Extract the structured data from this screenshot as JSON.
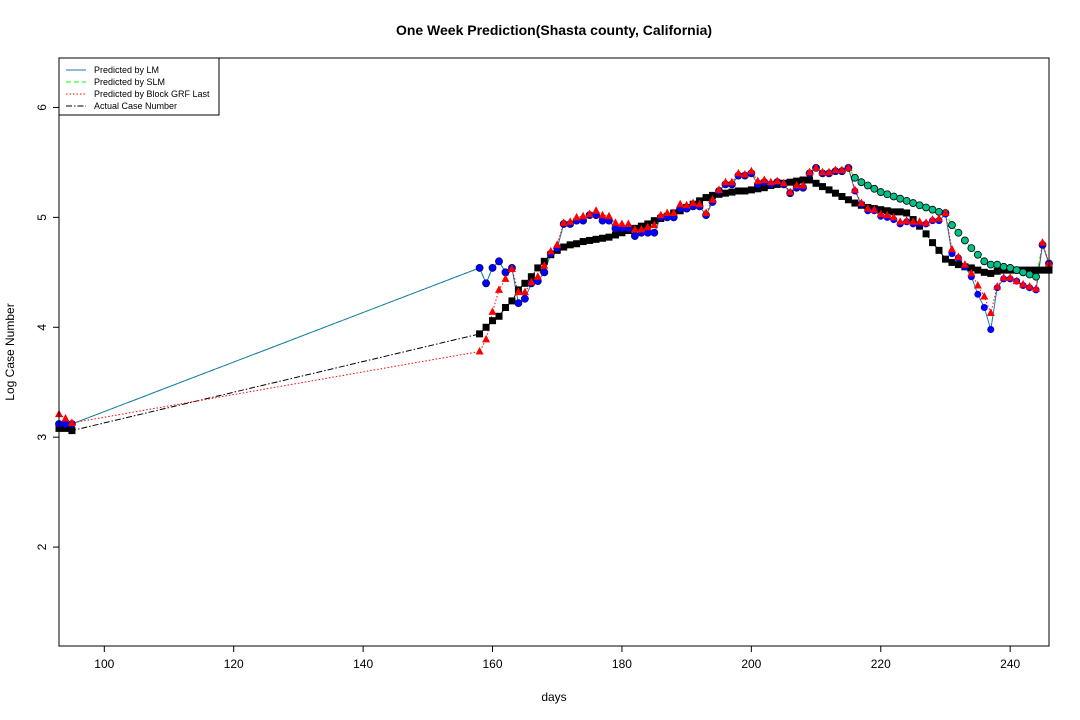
{
  "chart_data": {
    "type": "line",
    "title": "One Week Prediction(Shasta county, California)",
    "xlabel": "days",
    "ylabel": "Log Case Number",
    "xlim": [
      93,
      246
    ],
    "ylim": [
      1.1,
      6.45
    ],
    "x_ticks": [
      100,
      120,
      140,
      160,
      180,
      200,
      220,
      240
    ],
    "y_ticks": [
      2,
      3,
      4,
      5,
      6
    ],
    "grid": false,
    "legend_position": "top-left",
    "series": [
      {
        "name": "Predicted by LM",
        "line_color": "#1f77b4",
        "line_style": "solid",
        "marker": "circle",
        "marker_color": "#0000ff",
        "x": [
          93,
          94,
          95,
          158,
          159,
          160,
          161,
          162,
          163,
          164,
          165,
          166,
          167,
          168,
          169,
          170,
          171,
          172,
          173,
          174,
          175,
          176,
          177,
          178,
          179,
          180,
          181,
          182,
          183,
          184,
          185,
          186,
          187,
          188,
          189,
          190,
          191,
          192,
          193,
          194,
          195,
          196,
          197,
          198,
          199,
          200,
          201,
          202,
          203,
          204,
          205,
          206,
          207,
          208,
          209,
          210,
          211,
          212,
          213,
          214,
          215,
          216,
          217,
          218,
          219,
          220,
          221,
          222,
          223,
          224,
          225,
          226,
          227,
          228,
          229,
          230,
          231,
          232,
          233,
          234,
          235,
          236,
          237,
          238,
          239,
          240,
          241,
          242,
          243,
          244,
          245,
          246
        ],
        "y": [
          3.12,
          3.12,
          3.12,
          4.54,
          4.4,
          4.54,
          4.6,
          4.5,
          4.54,
          4.22,
          4.26,
          4.4,
          4.42,
          4.5,
          4.67,
          4.72,
          4.94,
          4.94,
          4.97,
          4.97,
          5.02,
          5.02,
          4.97,
          4.97,
          4.9,
          4.9,
          4.9,
          4.83,
          4.86,
          4.86,
          4.86,
          5.0,
          5.0,
          5.0,
          5.08,
          5.08,
          5.1,
          5.1,
          5.02,
          5.14,
          5.24,
          5.3,
          5.3,
          5.38,
          5.38,
          5.4,
          5.3,
          5.32,
          5.3,
          5.32,
          5.3,
          5.22,
          5.27,
          5.27,
          5.4,
          5.45,
          5.4,
          5.4,
          5.42,
          5.42,
          5.45,
          5.24,
          5.12,
          5.06,
          5.06,
          5.01,
          5.0,
          4.98,
          4.94,
          4.96,
          4.94,
          4.94,
          4.94,
          4.97,
          4.97,
          5.03,
          4.67,
          4.63,
          4.55,
          4.46,
          4.3,
          4.18,
          3.98,
          4.36,
          4.44,
          4.44,
          4.42,
          4.38,
          4.36,
          4.34,
          4.75,
          4.58
        ]
      },
      {
        "name": "Predicted by SLM",
        "line_color": "#00ff00",
        "line_style": "dashed",
        "marker": "circle",
        "marker_color": "#00c08a",
        "x": [
          93,
          94,
          95,
          158,
          159,
          160,
          161,
          162,
          163,
          164,
          165,
          166,
          167,
          168,
          169,
          170,
          171,
          172,
          173,
          174,
          175,
          176,
          177,
          178,
          179,
          180,
          181,
          182,
          183,
          184,
          185,
          186,
          187,
          188,
          189,
          190,
          191,
          192,
          193,
          194,
          195,
          196,
          197,
          198,
          199,
          200,
          201,
          202,
          203,
          204,
          205,
          206,
          207,
          208,
          209,
          210,
          211,
          212,
          213,
          214,
          215,
          216,
          217,
          218,
          219,
          220,
          221,
          222,
          223,
          224,
          225,
          226,
          227,
          228,
          229,
          230,
          231,
          232,
          233,
          234,
          235,
          236,
          237,
          238,
          239,
          240,
          241,
          242,
          243,
          244,
          245,
          246
        ],
        "y": [
          3.12,
          3.12,
          3.12,
          4.54,
          4.4,
          4.54,
          4.6,
          4.5,
          4.54,
          4.22,
          4.26,
          4.4,
          4.42,
          4.5,
          4.67,
          4.72,
          4.94,
          4.94,
          4.97,
          4.97,
          5.02,
          5.02,
          4.97,
          4.97,
          4.9,
          4.9,
          4.9,
          4.83,
          4.86,
          4.86,
          4.86,
          5.0,
          5.0,
          5.0,
          5.08,
          5.08,
          5.1,
          5.1,
          5.02,
          5.14,
          5.24,
          5.3,
          5.3,
          5.38,
          5.38,
          5.4,
          5.3,
          5.32,
          5.3,
          5.32,
          5.3,
          5.22,
          5.27,
          5.27,
          5.4,
          5.45,
          5.4,
          5.4,
          5.42,
          5.42,
          5.45,
          5.36,
          5.32,
          5.29,
          5.26,
          5.23,
          5.21,
          5.19,
          5.17,
          5.15,
          5.13,
          5.11,
          5.09,
          5.07,
          5.05,
          5.04,
          4.93,
          4.86,
          4.79,
          4.72,
          4.66,
          4.6,
          4.57,
          4.57,
          4.55,
          4.54,
          4.52,
          4.5,
          4.48,
          4.46,
          4.75,
          4.58
        ]
      },
      {
        "name": "Predicted by Block GRF Last",
        "line_color": "#ff0000",
        "line_style": "dotted",
        "marker": "triangle",
        "marker_color": "#ff0000",
        "x": [
          93,
          94,
          95,
          158,
          159,
          160,
          161,
          162,
          163,
          164,
          165,
          166,
          167,
          168,
          169,
          170,
          171,
          172,
          173,
          174,
          175,
          176,
          177,
          178,
          179,
          180,
          181,
          182,
          183,
          184,
          185,
          186,
          187,
          188,
          189,
          190,
          191,
          192,
          193,
          194,
          195,
          196,
          197,
          198,
          199,
          200,
          201,
          202,
          203,
          204,
          205,
          206,
          207,
          208,
          209,
          210,
          211,
          212,
          213,
          214,
          215,
          216,
          217,
          218,
          219,
          220,
          221,
          222,
          223,
          224,
          225,
          226,
          227,
          228,
          229,
          230,
          231,
          232,
          233,
          234,
          235,
          236,
          237,
          238,
          239,
          240,
          241,
          242,
          243,
          244,
          245,
          246
        ],
        "y": [
          3.21,
          3.17,
          3.13,
          3.78,
          3.89,
          4.14,
          4.34,
          4.44,
          4.53,
          4.32,
          4.32,
          4.41,
          4.46,
          4.56,
          4.69,
          4.75,
          4.95,
          4.96,
          5.0,
          5.01,
          5.03,
          5.06,
          5.02,
          5.01,
          4.95,
          4.94,
          4.94,
          4.89,
          4.89,
          4.91,
          4.93,
          5.02,
          5.04,
          5.04,
          5.12,
          5.11,
          5.13,
          5.12,
          5.04,
          5.16,
          5.25,
          5.32,
          5.32,
          5.4,
          5.39,
          5.42,
          5.33,
          5.34,
          5.32,
          5.33,
          5.31,
          5.23,
          5.29,
          5.29,
          5.41,
          5.45,
          5.41,
          5.41,
          5.43,
          5.43,
          5.45,
          5.25,
          5.13,
          5.08,
          5.07,
          5.03,
          5.02,
          5.0,
          4.96,
          4.97,
          4.96,
          4.96,
          4.95,
          4.98,
          4.99,
          5.04,
          4.71,
          4.64,
          4.57,
          4.49,
          4.38,
          4.28,
          4.13,
          4.37,
          4.45,
          4.45,
          4.42,
          4.39,
          4.37,
          4.35,
          4.77,
          4.58
        ]
      },
      {
        "name": "Actual Case Number",
        "line_color": "#000000",
        "line_style": "dotdash",
        "marker": "square",
        "marker_color": "#000000",
        "x": [
          93,
          94,
          95,
          158,
          159,
          160,
          161,
          162,
          163,
          164,
          165,
          166,
          167,
          168,
          169,
          170,
          171,
          172,
          173,
          174,
          175,
          176,
          177,
          178,
          179,
          180,
          181,
          182,
          183,
          184,
          185,
          186,
          187,
          188,
          189,
          190,
          191,
          192,
          193,
          194,
          195,
          196,
          197,
          198,
          199,
          200,
          201,
          202,
          203,
          204,
          205,
          206,
          207,
          208,
          209,
          210,
          211,
          212,
          213,
          214,
          215,
          216,
          217,
          218,
          219,
          220,
          221,
          222,
          223,
          224,
          225,
          226,
          227,
          228,
          229,
          230,
          231,
          232,
          233,
          234,
          235,
          236,
          237,
          238,
          239,
          240,
          241,
          242,
          243,
          244,
          245,
          246
        ],
        "y": [
          3.08,
          3.08,
          3.06,
          3.94,
          4.0,
          4.06,
          4.1,
          4.18,
          4.24,
          4.34,
          4.4,
          4.46,
          4.54,
          4.6,
          4.66,
          4.7,
          4.73,
          4.75,
          4.76,
          4.78,
          4.79,
          4.8,
          4.81,
          4.82,
          4.84,
          4.86,
          4.88,
          4.9,
          4.92,
          4.94,
          4.97,
          4.99,
          5.01,
          5.04,
          5.06,
          5.09,
          5.12,
          5.15,
          5.18,
          5.2,
          5.21,
          5.22,
          5.23,
          5.24,
          5.24,
          5.25,
          5.26,
          5.27,
          5.29,
          5.3,
          5.31,
          5.32,
          5.33,
          5.34,
          5.34,
          5.31,
          5.28,
          5.25,
          5.22,
          5.19,
          5.16,
          5.13,
          5.11,
          5.09,
          5.08,
          5.07,
          5.06,
          5.05,
          5.05,
          5.04,
          4.98,
          4.92,
          4.85,
          4.77,
          4.7,
          4.62,
          4.59,
          4.57,
          4.55,
          4.54,
          4.52,
          4.5,
          4.49,
          4.51,
          4.52,
          4.52,
          4.52,
          4.52,
          4.52,
          4.52,
          4.52,
          4.52
        ]
      }
    ]
  }
}
